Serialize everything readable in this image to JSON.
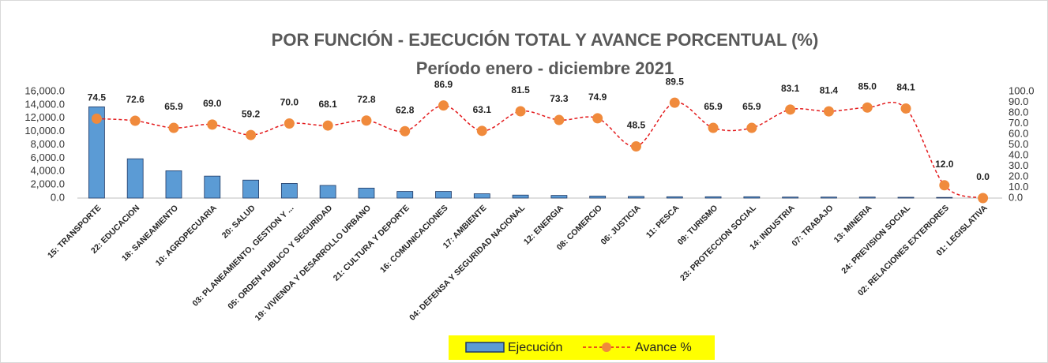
{
  "chart_data": {
    "type": "bar_line",
    "title": "POR FUNCIÓN - EJECUCIÓN TOTAL Y AVANCE PORCENTUAL (%)",
    "subtitle": "Período enero - diciembre 2021",
    "categories": [
      "15: TRANSPORTE",
      "22: EDUCACION",
      "18: SANEAMIENTO",
      "10: AGROPECUARIA",
      "20: SALUD",
      "03: PLANEAMIENTO, GESTION Y ...",
      "05: ORDEN PUBLICO Y SEGURIDAD",
      "19: VIVIENDA Y DESARROLLO URBANO",
      "21: CULTURA Y DEPORTE",
      "16: COMUNICACIONES",
      "17: AMBIENTE",
      "04: DEFENSA Y SEGURIDAD NACIONAL",
      "12: ENERGIA",
      "08: COMERCIO",
      "06: JUSTICIA",
      "11: PESCA",
      "09: TURISMO",
      "23: PROTECCION SOCIAL",
      "14: INDUSTRIA",
      "07: TRABAJO",
      "13: MINERIA",
      "24: PREVISION SOCIAL",
      "02: RELACIONES EXTERIORES",
      "01: LEGISLATIVA"
    ],
    "series": [
      {
        "name": "Ejecución",
        "type": "bar",
        "color": "#5b9bd5",
        "values": [
          13700,
          5900,
          4100,
          3300,
          2700,
          2200,
          1900,
          1500,
          1000,
          1000,
          650,
          450,
          400,
          300,
          250,
          200,
          200,
          200,
          150,
          150,
          150,
          120,
          100,
          0
        ]
      },
      {
        "name": "Avance %",
        "type": "line",
        "axis": "y2",
        "color": "#e31a1c",
        "marker_color": "#f08a3c",
        "values": [
          74.5,
          72.6,
          65.9,
          69.0,
          59.2,
          70.0,
          68.1,
          72.8,
          62.8,
          86.9,
          63.1,
          81.5,
          73.3,
          74.9,
          48.5,
          89.5,
          65.9,
          65.9,
          83.1,
          81.4,
          85.0,
          84.1,
          12.0,
          0.0
        ],
        "value_labels": [
          "74.5",
          "72.6",
          "65.9",
          "69.0",
          "59.2",
          "70.0",
          "68.1",
          "72.8",
          "62.8",
          "86.9",
          "63.1",
          "81.5",
          "73.3",
          "74.9",
          "48.5",
          "89.5",
          "65.9",
          "65.9",
          "83.1",
          "81.4",
          "85.0",
          "84.1",
          "12.0",
          "0.0"
        ]
      }
    ],
    "ylim": [
      0,
      16000
    ],
    "yticks": [
      {
        "value": 0,
        "label": "0.0"
      },
      {
        "value": 2000,
        "label": "2,000.0"
      },
      {
        "value": 4000,
        "label": "4,000.0"
      },
      {
        "value": 6000,
        "label": "6,000.0"
      },
      {
        "value": 8000,
        "label": "8,000.0"
      },
      {
        "value": 10000,
        "label": "10,000.0"
      },
      {
        "value": 12000,
        "label": "12,000.0"
      },
      {
        "value": 14000,
        "label": "14,000.0"
      },
      {
        "value": 16000,
        "label": "16,000.0"
      }
    ],
    "y2lim": [
      0,
      100
    ],
    "y2ticks": [
      {
        "value": 0,
        "label": "0.0"
      },
      {
        "value": 10,
        "label": "10.0"
      },
      {
        "value": 20,
        "label": "20.0"
      },
      {
        "value": 30,
        "label": "30.0"
      },
      {
        "value": 40,
        "label": "40.0"
      },
      {
        "value": 50,
        "label": "50.0"
      },
      {
        "value": 60,
        "label": "60.0"
      },
      {
        "value": 70,
        "label": "70.0"
      },
      {
        "value": 80,
        "label": "80.0"
      },
      {
        "value": 90,
        "label": "90.0"
      },
      {
        "value": 100,
        "label": "100.0"
      }
    ],
    "grid": false,
    "legend": "bottom"
  }
}
